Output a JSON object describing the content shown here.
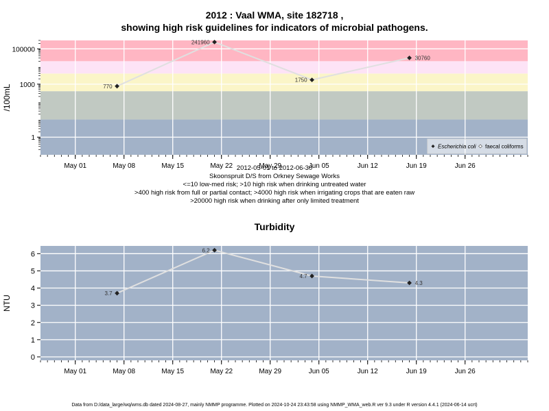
{
  "page": {
    "title_line1": "2012 : Vaal WMA, site 182718 ,",
    "title_line2": "showing high risk guidelines for indicators of microbial pathogens.",
    "notes": [
      "2012-05-01 to 2012-06-30",
      "Skoonspruit D/S from Orkney Sewage Works",
      "<=10 low-med risk; >10 high risk when drinking untreated water",
      ">400 high risk from full or partial contact; >4000 high risk when irrigating crops that are eaten raw",
      ">20000 high risk when drinking after only limited treatment"
    ],
    "footer": "Data from D:/data_large/wq/wms.db dated 2024-08-27, mainly NMMP programme. Plotted on 2024-10-24 23:43:58 using NMMP_WMA_web.R ver 9.3 under R version 4.4.1 (2024-06-14 ucrt)"
  },
  "chart_data": [
    {
      "type": "line",
      "ylabel": "/100mL",
      "y_scale": "log",
      "ylim": [
        0.1,
        300000
      ],
      "y_ticks": [
        {
          "value": 1,
          "label": "1"
        },
        {
          "value": 1000,
          "label": "1000"
        },
        {
          "value": 100000,
          "label": "100000"
        }
      ],
      "x_range": [
        "2012-04-26",
        "2012-07-05"
      ],
      "x_ticks": [
        {
          "date": "2012-05-01",
          "label": "May 01"
        },
        {
          "date": "2012-05-08",
          "label": "May 08"
        },
        {
          "date": "2012-05-15",
          "label": "May 15"
        },
        {
          "date": "2012-05-22",
          "label": "May 22"
        },
        {
          "date": "2012-05-29",
          "label": "May 29"
        },
        {
          "date": "2012-06-05",
          "label": "Jun 05"
        },
        {
          "date": "2012-06-12",
          "label": "Jun 12"
        },
        {
          "date": "2012-06-19",
          "label": "Jun 19"
        },
        {
          "date": "2012-06-26",
          "label": "Jun 26"
        }
      ],
      "risk_bands": [
        {
          "from": 0.1,
          "to": 10,
          "color": "#a2b2c8"
        },
        {
          "from": 10,
          "to": 400,
          "color": "#c1c9c2"
        },
        {
          "from": 400,
          "to": 4000,
          "color": "#fbf5c8"
        },
        {
          "from": 4000,
          "to": 20000,
          "color": "#fde3f6"
        },
        {
          "from": 20000,
          "to": 300000,
          "color": "#ffb6c3"
        }
      ],
      "series": [
        {
          "name": "Escherichia coli",
          "x": [
            "2012-05-07",
            "2012-05-21",
            "2012-06-04",
            "2012-06-18"
          ],
          "values": [
            770,
            241960,
            1750,
            30760
          ],
          "labels": [
            "770",
            "241960",
            "1750",
            "30760"
          ]
        }
      ],
      "legend": {
        "position": "bottom-right",
        "entries": [
          "Escherichia coli",
          "faecal coliforms"
        ]
      }
    },
    {
      "type": "line",
      "title": "Turbidity",
      "ylabel": "NTU",
      "ylim": [
        -0.2,
        6.45
      ],
      "y_ticks": [
        {
          "value": 0,
          "label": "0"
        },
        {
          "value": 1,
          "label": "1"
        },
        {
          "value": 2,
          "label": "2"
        },
        {
          "value": 3,
          "label": "3"
        },
        {
          "value": 4,
          "label": "4"
        },
        {
          "value": 5,
          "label": "5"
        },
        {
          "value": 6,
          "label": "6"
        }
      ],
      "x_range": [
        "2012-04-26",
        "2012-07-05"
      ],
      "x_ticks": [
        {
          "date": "2012-05-01",
          "label": "May 01"
        },
        {
          "date": "2012-05-08",
          "label": "May 08"
        },
        {
          "date": "2012-05-15",
          "label": "May 15"
        },
        {
          "date": "2012-05-22",
          "label": "May 22"
        },
        {
          "date": "2012-05-29",
          "label": "May 29"
        },
        {
          "date": "2012-06-05",
          "label": "Jun 05"
        },
        {
          "date": "2012-06-12",
          "label": "Jun 12"
        },
        {
          "date": "2012-06-19",
          "label": "Jun 19"
        },
        {
          "date": "2012-06-26",
          "label": "Jun 26"
        }
      ],
      "background": "#a2b2c8",
      "series": [
        {
          "x": [
            "2012-05-07",
            "2012-05-21",
            "2012-06-04",
            "2012-06-18"
          ],
          "values": [
            3.7,
            6.2,
            4.7,
            4.3
          ],
          "labels": [
            "3.7",
            "6.2",
            "4.7",
            "4.3"
          ]
        }
      ]
    }
  ]
}
